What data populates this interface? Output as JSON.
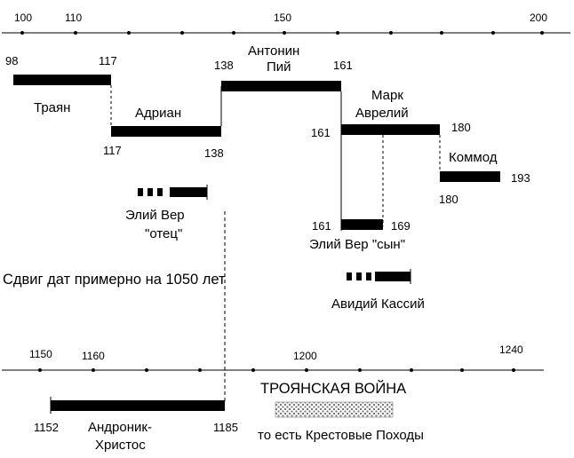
{
  "top_axis": {
    "ticks": [
      "100",
      "110",
      "150",
      "200"
    ]
  },
  "bottom_axis": {
    "ticks": [
      "1150",
      "1160",
      "1200",
      "1240"
    ]
  },
  "rulers": {
    "trajan": {
      "name": "Траян",
      "start": "98",
      "end": "117"
    },
    "hadrian": {
      "name": "Адриан",
      "start": "117",
      "end": "138"
    },
    "antoninus": {
      "name_line1": "Антонин",
      "name_line2": "Пий",
      "start": "138",
      "end": "161"
    },
    "marcus": {
      "name_line1": "Марк",
      "name_line2": "Аврелий",
      "start": "161",
      "end": "180"
    },
    "commodus": {
      "name": "Коммод",
      "start": "180",
      "end": "193"
    },
    "aelius_father": {
      "name_line1": "Элий Вер",
      "name_line2": "\"отец\""
    },
    "aelius_son": {
      "name": "Элий Вер \"сын\"",
      "start": "161",
      "end": "169"
    },
    "avidius": {
      "name": "Авидий Кассий"
    }
  },
  "shift_text": "Сдвиг дат примерно на 1050 лет",
  "andronicus": {
    "name_line1": "Андроник-",
    "name_line2": "Христос",
    "start": "1152",
    "end": "1185"
  },
  "trojan_war": {
    "title": "ТРОЯНСКАЯ ВОЙНА",
    "subtitle": "то есть Крестовые Походы"
  },
  "colors": {
    "ink": "#000000",
    "background": "#ffffff",
    "hatch": "#888888"
  }
}
